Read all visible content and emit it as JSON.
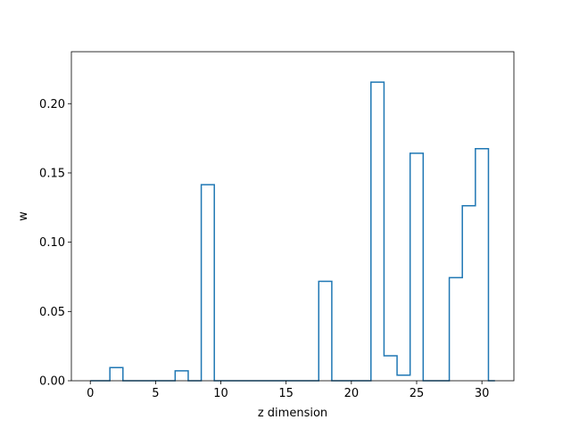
{
  "chart_data": {
    "type": "step",
    "title": "",
    "xlabel": "z dimension",
    "ylabel": "w",
    "xlim": [
      -1.45,
      32.45
    ],
    "ylim": [
      0,
      0.2375
    ],
    "grid": false,
    "x_ticks": [
      0,
      5,
      10,
      15,
      20,
      25,
      30
    ],
    "x_tick_labels": [
      "0",
      "5",
      "10",
      "15",
      "20",
      "25",
      "30"
    ],
    "y_ticks": [
      0.0,
      0.05,
      0.1,
      0.15,
      0.2
    ],
    "y_tick_labels": [
      "0.00",
      "0.05",
      "0.10",
      "0.15",
      "0.20"
    ],
    "series": [
      {
        "color": "#1f77b4",
        "x": [
          0,
          1,
          2,
          3,
          4,
          5,
          6,
          7,
          8,
          9,
          10,
          11,
          12,
          13,
          14,
          15,
          16,
          17,
          18,
          19,
          20,
          21,
          22,
          23,
          24,
          25,
          26,
          27,
          28,
          29,
          30,
          31
        ],
        "values": [
          0.0,
          0.0,
          0.0095,
          0.0,
          0.0,
          0.0,
          0.0,
          0.0072,
          0.0,
          0.1415,
          0.0,
          0.0,
          0.0,
          0.0,
          0.0,
          0.0,
          0.0,
          0.0,
          0.0718,
          0.0,
          0.0,
          0.0,
          0.2155,
          0.018,
          0.004,
          0.1642,
          0.0,
          0.0,
          0.0744,
          0.1263,
          0.1675,
          0.0
        ]
      }
    ]
  }
}
